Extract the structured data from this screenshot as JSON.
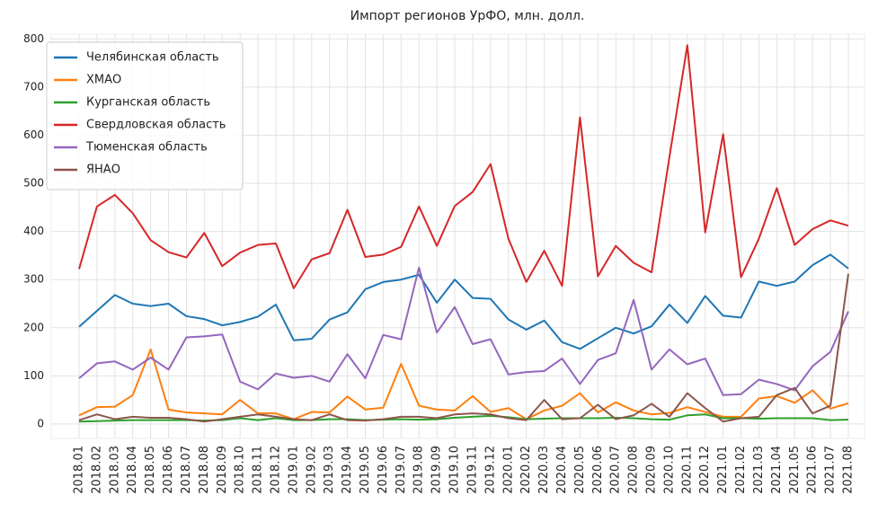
{
  "chart_data": {
    "type": "line",
    "title": "Импорт регионов УрФО, млн. долл.",
    "categories": [
      "2018.01",
      "2018.02",
      "2018.03",
      "2018.04",
      "2018.05",
      "2018.06",
      "2018.07",
      "2018.08",
      "2018.09",
      "2018.10",
      "2018.11",
      "2018.12",
      "2019.01",
      "2019.02",
      "2019.03",
      "2019.04",
      "2019.05",
      "2019.06",
      "2019.07",
      "2019.08",
      "2019.09",
      "2019.10",
      "2019.11",
      "2019.12",
      "2020.01",
      "2020.02",
      "2020.03",
      "2020.04",
      "2020.05",
      "2020.06",
      "2020.07",
      "2020.08",
      "2020.09",
      "2020.10",
      "2020.11",
      "2020.12",
      "2021.01",
      "2021.02",
      "2021.03",
      "2021.04",
      "2021.05",
      "2021.06",
      "2021.07",
      "2021.08"
    ],
    "series": [
      {
        "name": "Челябинская область",
        "color": "#1f77b4",
        "values": [
          202,
          235,
          268,
          250,
          245,
          250,
          224,
          218,
          205,
          212,
          223,
          248,
          174,
          177,
          217,
          232,
          280,
          295,
          300,
          310,
          252,
          300,
          262,
          260,
          217,
          196,
          215,
          170,
          156,
          178,
          200,
          188,
          203,
          248,
          210,
          266,
          225,
          221,
          296,
          287,
          296,
          330,
          352,
          323
        ]
      },
      {
        "name": "ХМАО",
        "color": "#ff7f0e",
        "values": [
          18,
          35,
          36,
          60,
          155,
          30,
          24,
          22,
          20,
          50,
          22,
          22,
          10,
          25,
          24,
          57,
          30,
          34,
          125,
          38,
          30,
          28,
          58,
          25,
          33,
          10,
          28,
          38,
          64,
          24,
          45,
          28,
          20,
          23,
          35,
          25,
          15,
          15,
          53,
          58,
          44,
          70,
          32,
          43
        ]
      },
      {
        "name": "Курганская область",
        "color": "#2ca02c",
        "values": [
          5,
          6,
          7,
          8,
          8,
          8,
          8,
          7,
          8,
          12,
          8,
          12,
          8,
          8,
          10,
          10,
          8,
          9,
          10,
          9,
          10,
          13,
          15,
          17,
          14,
          10,
          11,
          12,
          12,
          12,
          13,
          12,
          10,
          9,
          18,
          20,
          12,
          12,
          11,
          12,
          12,
          12,
          8,
          9
        ]
      },
      {
        "name": "Свердловская область",
        "color": "#d62728",
        "values": [
          322,
          452,
          476,
          438,
          382,
          357,
          346,
          397,
          328,
          356,
          372,
          375,
          282,
          342,
          355,
          445,
          347,
          352,
          368,
          452,
          370,
          453,
          482,
          540,
          385,
          295,
          360,
          287,
          637,
          307,
          370,
          335,
          315,
          555,
          787,
          398,
          602,
          305,
          385,
          490,
          372,
          405,
          423,
          412
        ]
      },
      {
        "name": "Тюменская область",
        "color": "#9467bd",
        "values": [
          95,
          126,
          130,
          113,
          138,
          113,
          180,
          182,
          186,
          88,
          72,
          105,
          96,
          100,
          88,
          145,
          95,
          185,
          176,
          325,
          190,
          243,
          166,
          176,
          103,
          108,
          110,
          136,
          83,
          133,
          147,
          258,
          113,
          155,
          124,
          136,
          60,
          62,
          92,
          83,
          70,
          120,
          150,
          234
        ]
      },
      {
        "name": "ЯНАО",
        "color": "#8c564b",
        "values": [
          8,
          20,
          10,
          15,
          13,
          13,
          10,
          5,
          10,
          15,
          20,
          15,
          10,
          8,
          20,
          8,
          7,
          10,
          15,
          15,
          12,
          20,
          22,
          20,
          12,
          8,
          50,
          10,
          12,
          40,
          10,
          18,
          42,
          15,
          64,
          33,
          5,
          12,
          15,
          60,
          75,
          22,
          38,
          312
        ]
      }
    ],
    "ylim": [
      -30,
      810
    ],
    "yticks": [
      0,
      100,
      200,
      300,
      400,
      500,
      600,
      700,
      800
    ],
    "grid": true,
    "legend": "upper left"
  }
}
